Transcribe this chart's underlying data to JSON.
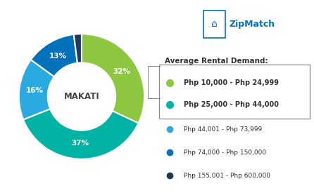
{
  "title": "MAKATI",
  "legend_title": "Average Rental Demand:",
  "slices": [
    32,
    37,
    16,
    13,
    2
  ],
  "colors": [
    "#8dc63f",
    "#00b3a4",
    "#29abe2",
    "#0072bc",
    "#1e3a5c"
  ],
  "legend_labels": [
    "Php 10,000 - Php 24,999",
    "Php 25,000 - Php 44,000",
    "Php 44,001 - Php 73,999",
    "Php 74,000 - Php 150,000",
    "Php 155,001 - Php 600,000"
  ],
  "legend_colors": [
    "#8dc63f",
    "#00b3a4",
    "#29abe2",
    "#0072bc",
    "#1e3a5c"
  ],
  "start_angle": 90,
  "background_color": "#ffffff",
  "zipmatch_color": "#0072bc",
  "zipmatch_green": "#8dc63f"
}
